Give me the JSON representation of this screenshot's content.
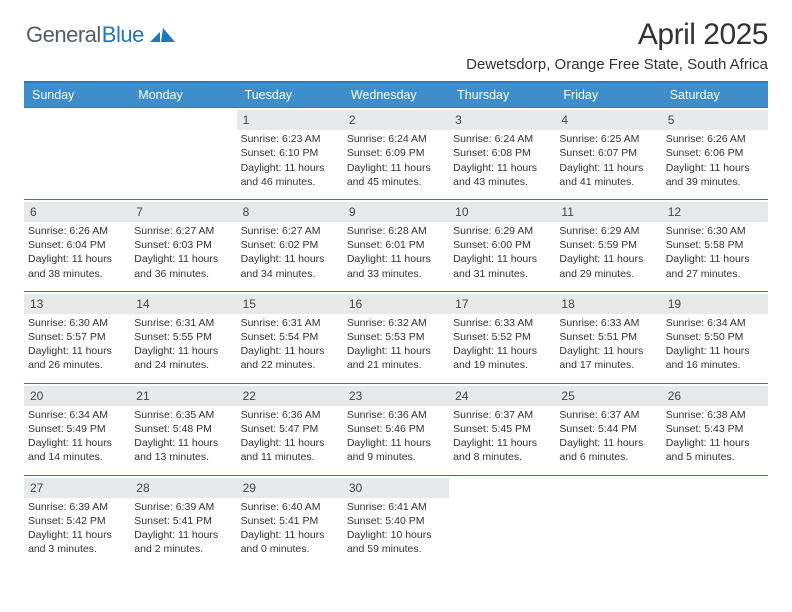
{
  "brand": {
    "part1": "General",
    "part2": "Blue"
  },
  "title": "April 2025",
  "subtitle": "Dewetsdorp, Orange Free State, South Africa",
  "colors": {
    "header_bg": "#3d8ecb",
    "header_border": "#2a7abf",
    "date_bg": "#e7e9eb",
    "brand_gray": "#555d66",
    "brand_blue": "#2176bc"
  },
  "daynames": [
    "Sunday",
    "Monday",
    "Tuesday",
    "Wednesday",
    "Thursday",
    "Friday",
    "Saturday"
  ],
  "weeks": [
    [
      null,
      null,
      {
        "d": "1",
        "sr": "6:23 AM",
        "ss": "6:10 PM",
        "dl": "11 hours and 46 minutes."
      },
      {
        "d": "2",
        "sr": "6:24 AM",
        "ss": "6:09 PM",
        "dl": "11 hours and 45 minutes."
      },
      {
        "d": "3",
        "sr": "6:24 AM",
        "ss": "6:08 PM",
        "dl": "11 hours and 43 minutes."
      },
      {
        "d": "4",
        "sr": "6:25 AM",
        "ss": "6:07 PM",
        "dl": "11 hours and 41 minutes."
      },
      {
        "d": "5",
        "sr": "6:26 AM",
        "ss": "6:06 PM",
        "dl": "11 hours and 39 minutes."
      }
    ],
    [
      {
        "d": "6",
        "sr": "6:26 AM",
        "ss": "6:04 PM",
        "dl": "11 hours and 38 minutes."
      },
      {
        "d": "7",
        "sr": "6:27 AM",
        "ss": "6:03 PM",
        "dl": "11 hours and 36 minutes."
      },
      {
        "d": "8",
        "sr": "6:27 AM",
        "ss": "6:02 PM",
        "dl": "11 hours and 34 minutes."
      },
      {
        "d": "9",
        "sr": "6:28 AM",
        "ss": "6:01 PM",
        "dl": "11 hours and 33 minutes."
      },
      {
        "d": "10",
        "sr": "6:29 AM",
        "ss": "6:00 PM",
        "dl": "11 hours and 31 minutes."
      },
      {
        "d": "11",
        "sr": "6:29 AM",
        "ss": "5:59 PM",
        "dl": "11 hours and 29 minutes."
      },
      {
        "d": "12",
        "sr": "6:30 AM",
        "ss": "5:58 PM",
        "dl": "11 hours and 27 minutes."
      }
    ],
    [
      {
        "d": "13",
        "sr": "6:30 AM",
        "ss": "5:57 PM",
        "dl": "11 hours and 26 minutes."
      },
      {
        "d": "14",
        "sr": "6:31 AM",
        "ss": "5:55 PM",
        "dl": "11 hours and 24 minutes."
      },
      {
        "d": "15",
        "sr": "6:31 AM",
        "ss": "5:54 PM",
        "dl": "11 hours and 22 minutes."
      },
      {
        "d": "16",
        "sr": "6:32 AM",
        "ss": "5:53 PM",
        "dl": "11 hours and 21 minutes."
      },
      {
        "d": "17",
        "sr": "6:33 AM",
        "ss": "5:52 PM",
        "dl": "11 hours and 19 minutes."
      },
      {
        "d": "18",
        "sr": "6:33 AM",
        "ss": "5:51 PM",
        "dl": "11 hours and 17 minutes."
      },
      {
        "d": "19",
        "sr": "6:34 AM",
        "ss": "5:50 PM",
        "dl": "11 hours and 16 minutes."
      }
    ],
    [
      {
        "d": "20",
        "sr": "6:34 AM",
        "ss": "5:49 PM",
        "dl": "11 hours and 14 minutes."
      },
      {
        "d": "21",
        "sr": "6:35 AM",
        "ss": "5:48 PM",
        "dl": "11 hours and 13 minutes."
      },
      {
        "d": "22",
        "sr": "6:36 AM",
        "ss": "5:47 PM",
        "dl": "11 hours and 11 minutes."
      },
      {
        "d": "23",
        "sr": "6:36 AM",
        "ss": "5:46 PM",
        "dl": "11 hours and 9 minutes."
      },
      {
        "d": "24",
        "sr": "6:37 AM",
        "ss": "5:45 PM",
        "dl": "11 hours and 8 minutes."
      },
      {
        "d": "25",
        "sr": "6:37 AM",
        "ss": "5:44 PM",
        "dl": "11 hours and 6 minutes."
      },
      {
        "d": "26",
        "sr": "6:38 AM",
        "ss": "5:43 PM",
        "dl": "11 hours and 5 minutes."
      }
    ],
    [
      {
        "d": "27",
        "sr": "6:39 AM",
        "ss": "5:42 PM",
        "dl": "11 hours and 3 minutes."
      },
      {
        "d": "28",
        "sr": "6:39 AM",
        "ss": "5:41 PM",
        "dl": "11 hours and 2 minutes."
      },
      {
        "d": "29",
        "sr": "6:40 AM",
        "ss": "5:41 PM",
        "dl": "11 hours and 0 minutes."
      },
      {
        "d": "30",
        "sr": "6:41 AM",
        "ss": "5:40 PM",
        "dl": "10 hours and 59 minutes."
      },
      null,
      null,
      null
    ]
  ],
  "labels": {
    "sunrise": "Sunrise: ",
    "sunset": "Sunset: ",
    "daylight": "Daylight: "
  }
}
